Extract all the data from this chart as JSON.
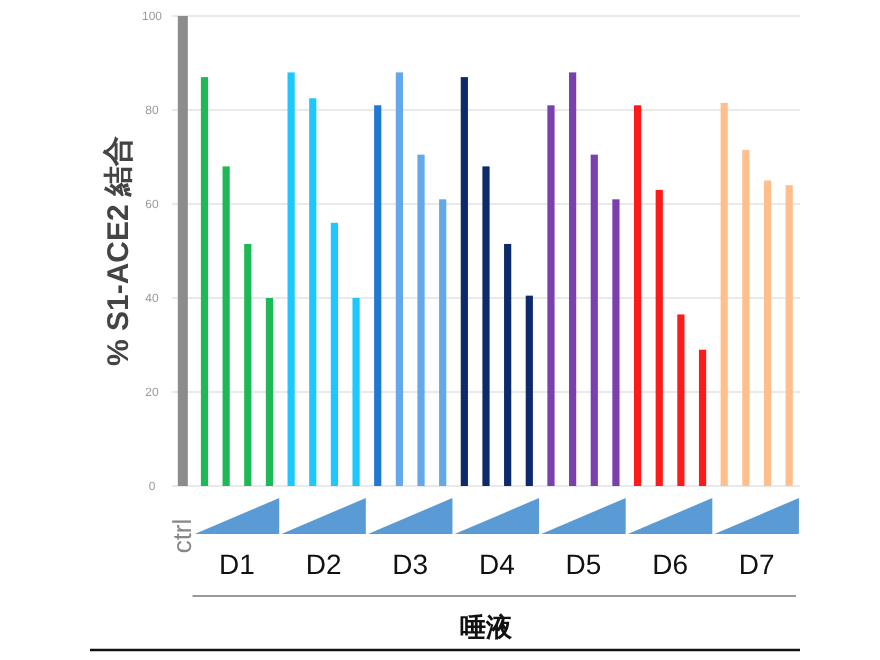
{
  "chart_data": {
    "type": "bar",
    "ylabel": "% S1-ACE2 結合",
    "xlabel": "唾液",
    "categories": [
      "ctrl",
      null,
      null,
      null,
      null,
      null,
      null,
      null,
      null,
      null,
      null,
      null,
      null,
      null,
      null,
      null,
      null,
      null,
      null,
      null,
      null,
      null,
      null,
      null,
      null,
      null,
      null,
      null,
      null
    ],
    "values": [
      100,
      87,
      68,
      51.5,
      40,
      88,
      82.5,
      56,
      40,
      81,
      88,
      70.5,
      61,
      87,
      68,
      51.5,
      40.5,
      81,
      88,
      70.5,
      61,
      81,
      63,
      36.5,
      29,
      81.5,
      71.5,
      65,
      64
    ],
    "colors": [
      "#8c8c8c",
      "#1db954",
      "#1db954",
      "#1db954",
      "#1db954",
      "#1ec8ff",
      "#1ec8ff",
      "#1ec8ff",
      "#1ec8ff",
      "#1f78d1",
      "#62a8ea",
      "#62a8ea",
      "#62a8ea",
      "#0d2a6b",
      "#0d2a6b",
      "#0d2a6b",
      "#0d2a6b",
      "#7b3fb0",
      "#7b3fb0",
      "#7b3fb0",
      "#7b3fb0",
      "#ff1a1a",
      "#ff1a1a",
      "#ff1a1a",
      "#ff1a1a",
      "#ffbf8c",
      "#ffbf8c",
      "#ffbf8c",
      "#ffbf8c"
    ],
    "annotations": [
      "D1",
      "D2",
      "D3",
      "D4",
      "D5",
      "D6",
      "D7"
    ],
    "ylim": [
      0,
      100
    ],
    "yticks": [
      0,
      20,
      40,
      60,
      80,
      100
    ],
    "grid": "y"
  }
}
